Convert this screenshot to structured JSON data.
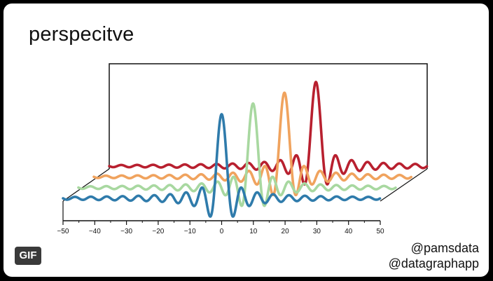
{
  "title": "perspecitve",
  "credits": [
    "@pamsdata",
    "@datagraphapp"
  ],
  "badge": "GIF",
  "chart_data": {
    "type": "line",
    "title": "perspecitve",
    "xlabel": "",
    "ylabel": "",
    "xlim": [
      -50,
      50
    ],
    "x_ticks": [
      -50,
      -40,
      -30,
      -20,
      -10,
      0,
      10,
      20,
      30,
      40,
      50
    ],
    "grid": false,
    "legend": "none",
    "projection": "3D perspective, series stacked in depth",
    "series": [
      {
        "color": "#2f7bab",
        "center": 0,
        "peak": 1.0,
        "period": 5
      },
      {
        "color": "#a8d8a0",
        "center": 5,
        "peak": 1.0,
        "period": 5
      },
      {
        "color": "#f0a35e",
        "center": 10,
        "peak": 1.0,
        "period": 5
      },
      {
        "color": "#b8202f",
        "center": 15,
        "peak": 1.0,
        "period": 5
      }
    ]
  }
}
